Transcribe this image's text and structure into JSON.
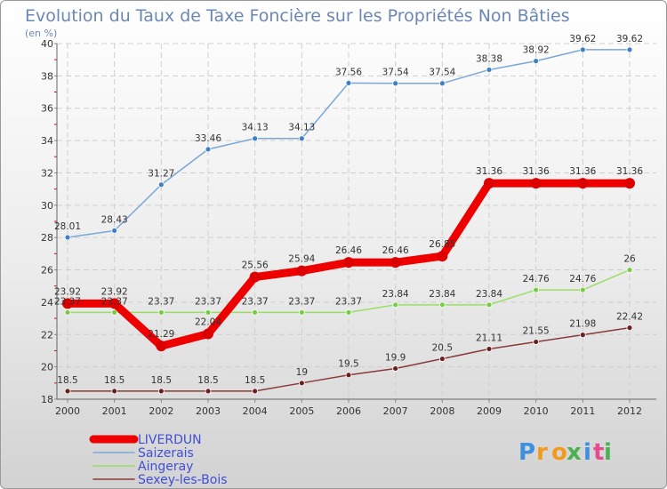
{
  "chart_data": {
    "type": "line",
    "title": "Evolution du Taux de Taxe Foncière sur les Propriétés Non Bâties",
    "subtitle": "(en %)",
    "x": [
      "2000",
      "2001",
      "2002",
      "2003",
      "2004",
      "2005",
      "2006",
      "2007",
      "2008",
      "2009",
      "2010",
      "2011",
      "2012"
    ],
    "ylim": [
      18,
      40
    ],
    "yticks": [
      18,
      20,
      22,
      24,
      26,
      28,
      30,
      32,
      34,
      36,
      38,
      40
    ],
    "grid": true,
    "legend_position": "bottom-left",
    "series": [
      {
        "name": "LIVERDUN",
        "color": "#ee0000",
        "values": [
          23.92,
          23.92,
          21.29,
          22.04,
          25.56,
          25.94,
          26.46,
          26.46,
          26.85,
          31.36,
          31.36,
          31.36,
          31.36
        ],
        "labels": [
          "23.92",
          "23.92",
          "21.29",
          "22.04",
          "25.56",
          "25.94",
          "26.46",
          "26.46",
          "26.85",
          "31.36",
          "31.36",
          "31.36",
          "31.36"
        ]
      },
      {
        "name": "Saizerais",
        "color": "#7aa7d8",
        "values": [
          28.01,
          28.43,
          31.27,
          33.46,
          34.13,
          34.13,
          37.56,
          37.54,
          37.54,
          38.38,
          38.92,
          39.62,
          39.62
        ],
        "labels": [
          "28.01",
          "28.43",
          "31.27",
          "33.46",
          "34.13",
          "34.13",
          "37.56",
          "37.54",
          "37.54",
          "38.38",
          "38.92",
          "39.62",
          "39.62"
        ]
      },
      {
        "name": "Aingeray",
        "color": "#99dd66",
        "values": [
          23.37,
          23.37,
          23.37,
          23.37,
          23.37,
          23.37,
          23.37,
          23.84,
          23.84,
          23.84,
          24.76,
          24.76,
          26
        ],
        "labels": [
          "23.37",
          "23.37",
          "23.37",
          "23.37",
          "23.37",
          "23.37",
          "23.37",
          "23.84",
          "23.84",
          "23.84",
          "24.76",
          "24.76",
          "26"
        ]
      },
      {
        "name": "Sexey-les-Bois",
        "color": "#8a3a3a",
        "values": [
          18.5,
          18.5,
          18.5,
          18.5,
          18.5,
          19,
          19.5,
          19.9,
          20.5,
          21.11,
          21.55,
          21.98,
          22.42
        ],
        "labels": [
          "18.5",
          "18.5",
          "18.5",
          "18.5",
          "18.5",
          "19",
          "19.5",
          "19.9",
          "20.5",
          "21.11",
          "21.55",
          "21.98",
          "22.42"
        ]
      }
    ]
  },
  "logo": {
    "letters": [
      "P",
      "r",
      "o",
      "x",
      "i",
      "t",
      "i"
    ]
  }
}
